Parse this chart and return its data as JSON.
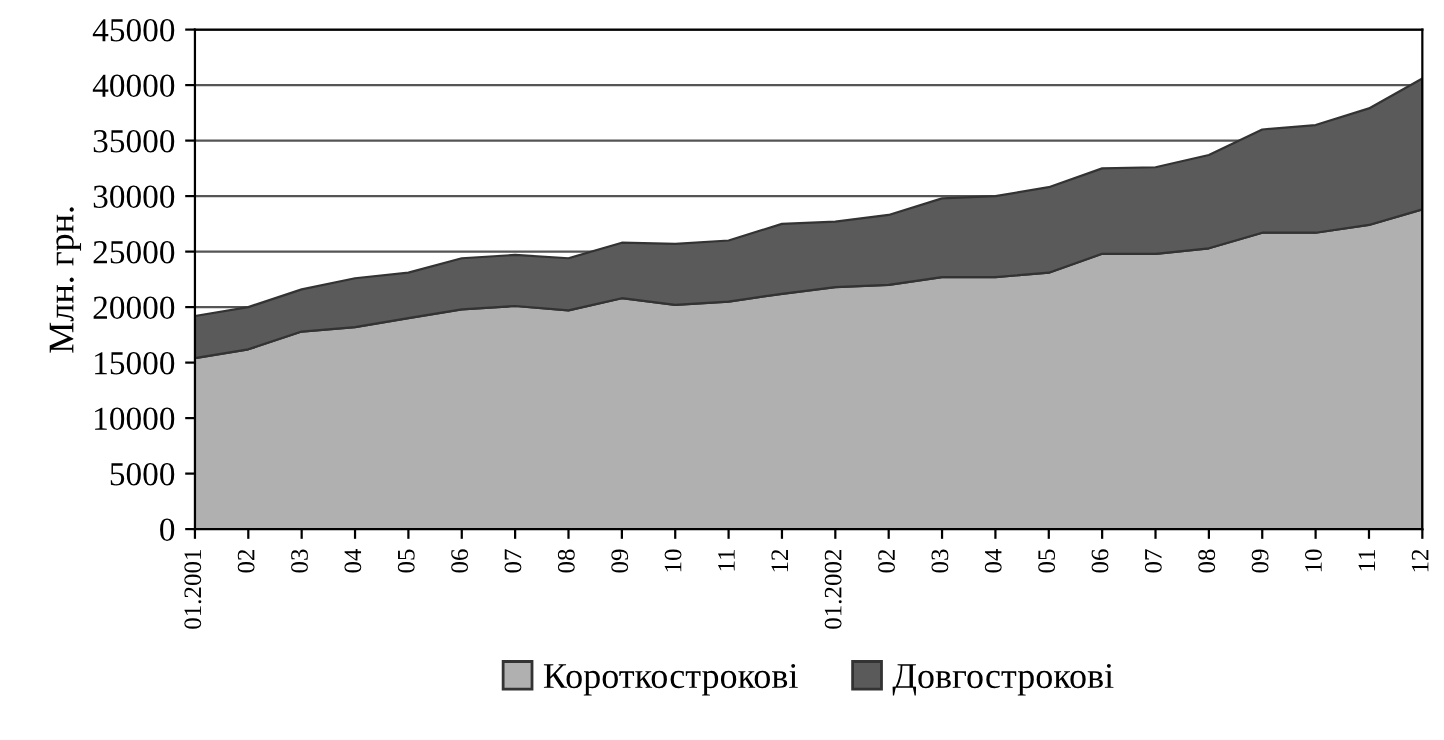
{
  "chart_data": {
    "type": "area",
    "stacked": true,
    "ylabel": "Млн. грн.",
    "categories": [
      "01.2001",
      "02",
      "03",
      "04",
      "05",
      "06",
      "07",
      "08",
      "09",
      "10",
      "11",
      "12",
      "01.2002",
      "02",
      "03",
      "04",
      "05",
      "06",
      "07",
      "08",
      "09",
      "10",
      "11",
      "12"
    ],
    "series": [
      {
        "name": "Короткострокові",
        "color": "#b0b0b0",
        "values": [
          15400,
          16200,
          17800,
          18200,
          19000,
          19800,
          20100,
          19700,
          20800,
          20200,
          20500,
          21200,
          21800,
          22000,
          22700,
          22700,
          23100,
          24800,
          24800,
          25300,
          26700,
          26700,
          27400,
          28800
        ]
      },
      {
        "name": "Довгострокові",
        "color": "#5a5a5a",
        "values": [
          3800,
          3800,
          3800,
          4400,
          4100,
          4600,
          4600,
          4700,
          5000,
          5500,
          5500,
          6300,
          5900,
          6300,
          7100,
          7300,
          7700,
          7700,
          7800,
          8400,
          9300,
          9700,
          10500,
          11800
        ]
      }
    ],
    "ylim": [
      0,
      45000
    ],
    "yticks": [
      0,
      5000,
      10000,
      15000,
      20000,
      25000,
      30000,
      35000,
      40000,
      45000
    ],
    "grid": "y",
    "legend": "bottom"
  }
}
